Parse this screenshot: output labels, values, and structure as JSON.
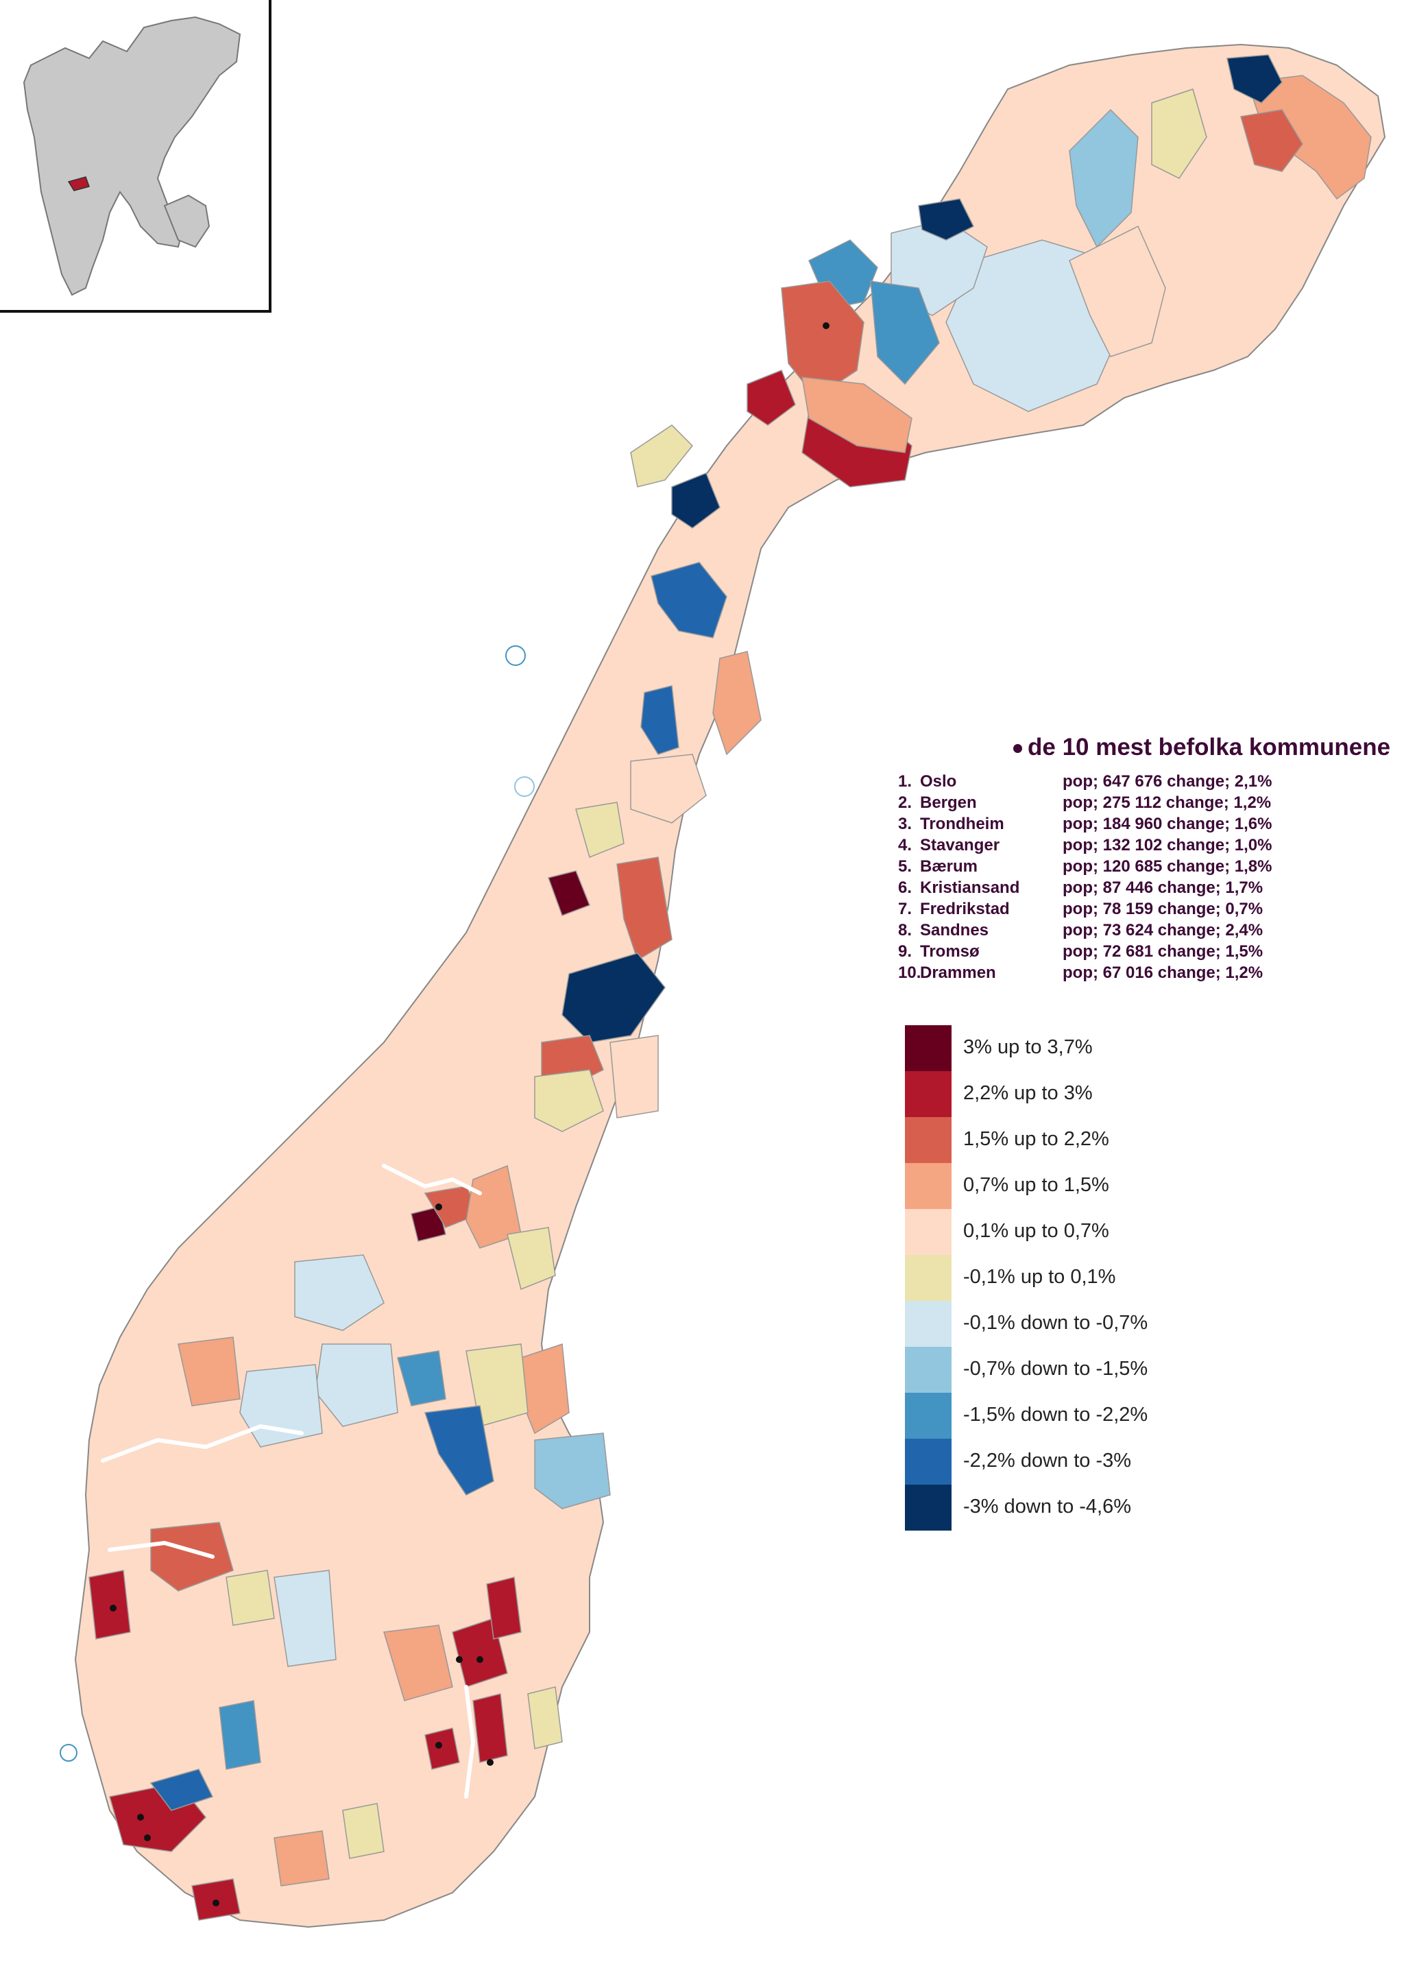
{
  "legend": {
    "title": "de 10 mest befolka kommunene",
    "cities": [
      {
        "rank": "1.",
        "name": "Oslo",
        "stat": "pop; 647 676 change; 2,1%"
      },
      {
        "rank": "2.",
        "name": "Bergen",
        "stat": "pop; 275 112 change; 1,2%"
      },
      {
        "rank": "3.",
        "name": "Trondheim",
        "stat": "pop; 184 960 change; 1,6%"
      },
      {
        "rank": "4.",
        "name": "Stavanger",
        "stat": "pop; 132 102 change; 1,0%"
      },
      {
        "rank": "5.",
        "name": "Bærum",
        "stat": "pop; 120 685 change; 1,8%"
      },
      {
        "rank": "6.",
        "name": "Kristiansand",
        "stat": "pop; 87 446 change; 1,7%"
      },
      {
        "rank": "7.",
        "name": "Fredrikstad",
        "stat": "pop; 78 159 change; 0,7%"
      },
      {
        "rank": "8.",
        "name": "Sandnes",
        "stat": "pop; 73 624 change; 2,4%"
      },
      {
        "rank": "9.",
        "name": "Tromsø",
        "stat": "pop; 72 681 change; 1,5%"
      },
      {
        "rank": "10.",
        "name": "Drammen",
        "stat": "pop; 67 016 change; 1,2%"
      }
    ]
  },
  "color_scale": [
    {
      "label": "3% up to 3,7%",
      "color": "#67001f"
    },
    {
      "label": "2,2% up to 3%",
      "color": "#b2182b"
    },
    {
      "label": "1,5% up to 2,2%",
      "color": "#d6604d"
    },
    {
      "label": "0,7% up to 1,5%",
      "color": "#f4a582"
    },
    {
      "label": "0,1% up to 0,7%",
      "color": "#fddbc7"
    },
    {
      "label": "-0,1% up to 0,1%",
      "color": "#ebe3ab"
    },
    {
      "label": "-0,1% down to -0,7%",
      "color": "#d1e5f0"
    },
    {
      "label": "-0,7% down to -1,5%",
      "color": "#92c5de"
    },
    {
      "label": "-1,5% down to -2,2%",
      "color": "#4393c3"
    },
    {
      "label": "-2,2% down to -3%",
      "color": "#2166ac"
    },
    {
      "label": "-3% down to -4,6%",
      "color": "#053061"
    }
  ],
  "map": {
    "land_color": "#fddbc7",
    "border_color": "#999999",
    "inset_land_color": "#c8c8c8"
  }
}
